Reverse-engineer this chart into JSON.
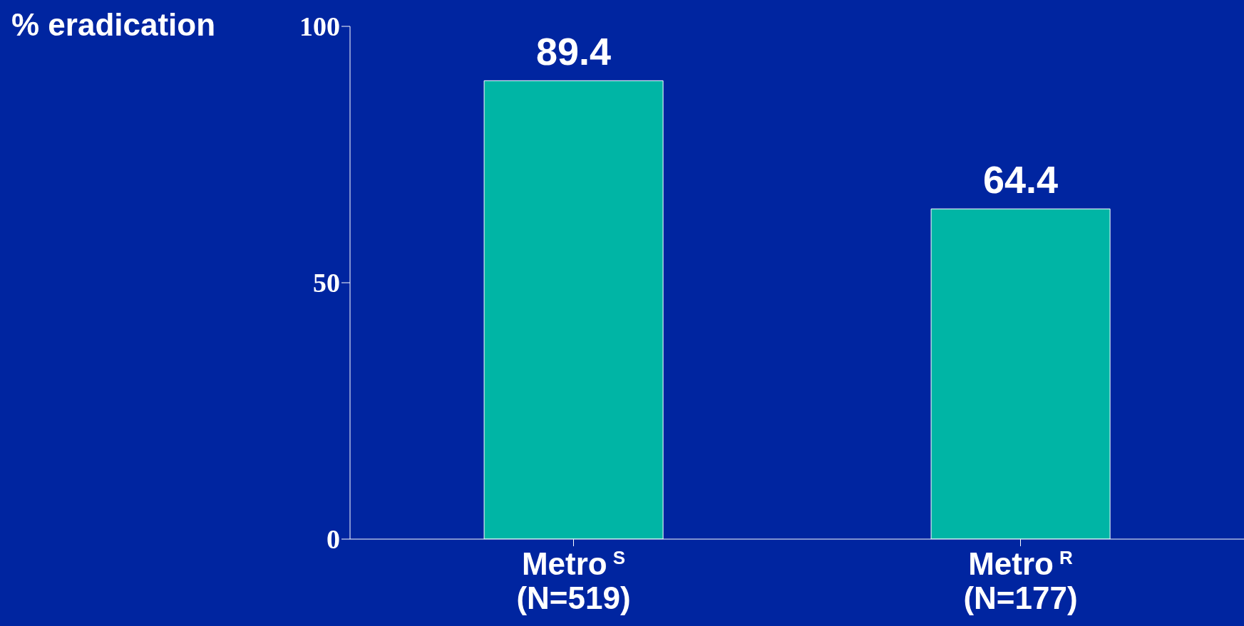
{
  "chart_data": {
    "type": "bar",
    "ylabel": "% eradication",
    "categories": [
      "Metro$^{S}$\n(N=519)",
      "Metro$^{R}$\n(N=177)"
    ],
    "values": [
      89.4,
      64.4
    ],
    "color": "#00b5a5",
    "ylim": [
      0,
      100
    ],
    "yticks": [
      0,
      50,
      100
    ],
    "data_labels": true
  }
}
